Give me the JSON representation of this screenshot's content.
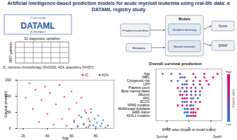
{
  "title": "Artificial intelligence-based prediction models for acute myeloid leukemia using real-life data: a DATAML registry study",
  "logo": {
    "top": "TOULOUSE",
    "main": "DATAML",
    "bottom": "BORDEAUX"
  },
  "matrix": {
    "columns_label": "52 diagnostic variables",
    "rows_label": "3687 patients"
  },
  "cohorts": "IC: intensive chemotherapy (N=3030); AZA: azacitidine (N=657)",
  "flow": {
    "input": "Preprocessed data",
    "metadata": "Metadata",
    "models": "Models",
    "model_types": [
      "Gradient boosting",
      "Neural networks"
    ],
    "outputs": [
      "Score",
      "SHAP"
    ]
  },
  "chart_data": [
    {
      "type": "scatter",
      "x_label": "Age",
      "y_label": "Survival (months)",
      "xlim": [
        15,
        95
      ],
      "xticks": [
        20,
        40,
        60,
        80
      ],
      "ylim": [
        0,
        150
      ],
      "yticks": [
        0,
        50,
        100,
        150
      ],
      "legend": "top-right",
      "series": [
        {
          "name": "IC",
          "color": "#e8473b",
          "x": [
            22,
            25,
            28,
            30,
            33,
            35,
            38,
            40,
            42,
            45,
            47,
            50,
            52,
            54,
            56,
            58,
            60,
            62,
            64,
            65,
            66,
            68,
            70,
            71,
            72,
            74,
            75,
            76
          ],
          "values": [
            95,
            140,
            60,
            120,
            20,
            88,
            130,
            45,
            110,
            12,
            75,
            135,
            30,
            98,
            8,
            60,
            115,
            25,
            80,
            5,
            40,
            95,
            15,
            55,
            3,
            30,
            10,
            50
          ]
        },
        {
          "name": "AZA",
          "color": "#3b78c9",
          "x": [
            62,
            65,
            68,
            70,
            72,
            74,
            75,
            76,
            78,
            79,
            80,
            81,
            82,
            84,
            85,
            86,
            88,
            90
          ],
          "values": [
            20,
            8,
            35,
            12,
            48,
            5,
            22,
            60,
            10,
            30,
            4,
            18,
            40,
            7,
            15,
            26,
            3,
            9
          ]
        }
      ]
    },
    {
      "type": "beeswarm",
      "title": "Overall survival prediction",
      "x_label": "SHAP value (impact on model output)",
      "xlim": [
        -1.5,
        1.5
      ],
      "xticks": [
        -1,
        0,
        1
      ],
      "end_labels": [
        "Survival",
        "Death"
      ],
      "categories": [
        "Age",
        "WBC",
        "Cytogenetic risk",
        "LDH",
        "Platelets count",
        "Bone marrow blasts",
        "Albumin",
        "ANC",
        "ECOG",
        "NPM1 mutation",
        "Multilineage dysplasia",
        "sAML status",
        "ASXL1 mutation"
      ],
      "values": [
        [
          -1.2,
          -0.8,
          -0.4,
          0.2,
          0.7,
          1.3
        ],
        [
          -0.4,
          -0.3,
          -0.2,
          0.3,
          0.7,
          1.1
        ],
        [
          -0.8,
          -0.5,
          -0.1,
          0.2,
          0.5,
          0.8
        ],
        [
          -0.3,
          -0.2,
          -0.1,
          0.2,
          0.5,
          0.9
        ],
        [
          -0.5,
          -0.3,
          -0.1,
          0.1,
          0.3,
          0.6
        ],
        [
          -0.4,
          -0.2,
          -0.1,
          0.1,
          0.3,
          0.5
        ],
        [
          -0.4,
          -0.3,
          -0.1,
          0.1,
          0.3,
          0.5
        ],
        [
          -0.3,
          -0.2,
          -0.1,
          0.1,
          0.2,
          0.4
        ],
        [
          -0.3,
          -0.2,
          -0.1,
          0.1,
          0.3,
          0.5
        ],
        [
          -0.5,
          -0.3,
          -0.1,
          0.05,
          0.1,
          0.2
        ],
        [
          -0.2,
          -0.1,
          -0.05,
          0.1,
          0.2,
          0.4
        ],
        [
          -0.2,
          -0.1,
          -0.05,
          0.1,
          0.2,
          0.3
        ],
        [
          -0.1,
          -0.05,
          0.0,
          0.1,
          0.2,
          0.3
        ]
      ],
      "feature_values": [
        [
          0.05,
          0.2,
          0.35,
          0.6,
          0.8,
          0.95
        ],
        [
          0.1,
          0.2,
          0.3,
          0.6,
          0.8,
          0.95
        ],
        [
          0.1,
          0.2,
          0.4,
          0.6,
          0.8,
          0.9
        ],
        [
          0.1,
          0.2,
          0.3,
          0.6,
          0.8,
          0.95
        ],
        [
          0.9,
          0.8,
          0.6,
          0.4,
          0.2,
          0.05
        ],
        [
          0.1,
          0.2,
          0.4,
          0.6,
          0.8,
          0.9
        ],
        [
          0.9,
          0.8,
          0.6,
          0.4,
          0.2,
          0.1
        ],
        [
          0.9,
          0.7,
          0.6,
          0.4,
          0.3,
          0.1
        ],
        [
          0.1,
          0.2,
          0.4,
          0.6,
          0.8,
          0.9
        ],
        [
          0.95,
          0.9,
          0.8,
          0.1,
          0.05,
          0.0
        ],
        [
          0.1,
          0.05,
          0.0,
          0.8,
          0.9,
          0.95
        ],
        [
          0.05,
          0.1,
          0.0,
          0.8,
          0.9,
          0.95
        ],
        [
          0.0,
          0.05,
          0.1,
          0.8,
          0.9,
          0.95
        ]
      ],
      "color_bar": {
        "label": "Feature value",
        "high": "High",
        "low": "Low",
        "range": [
          0,
          1
        ],
        "colors": [
          "#1e88e5",
          "#ff0052"
        ]
      }
    }
  ]
}
